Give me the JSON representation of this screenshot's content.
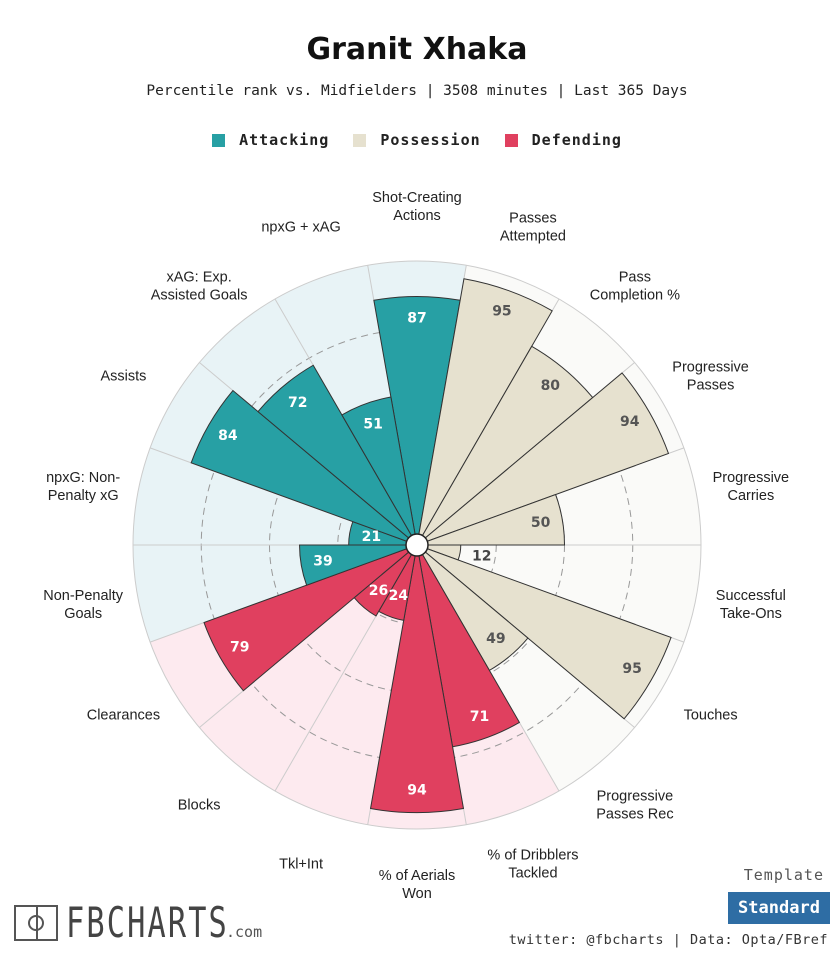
{
  "title": "Granit Xhaka",
  "subtitle": "Percentile rank vs. Midfielders | 3508 minutes | Last 365 Days",
  "legend": {
    "attacking": "Attacking",
    "possession": "Possession",
    "defending": "Defending"
  },
  "colors": {
    "attacking": "#27a0a4",
    "possession": "#e6e1cf",
    "defending": "#e0405f",
    "attacking_bg": "#e8f3f6",
    "possession_bg": "#fafaf8",
    "defending_bg": "#fdeaef"
  },
  "chart_data": {
    "type": "radar",
    "title": "Granit Xhaka",
    "scale": [
      0,
      100
    ],
    "metrics": [
      {
        "label": "Shot-Creating\nActions",
        "value": 87,
        "group": "attacking"
      },
      {
        "label": "Passes\nAttempted",
        "value": 95,
        "group": "possession"
      },
      {
        "label": "Pass\nCompletion %",
        "value": 80,
        "group": "possession"
      },
      {
        "label": "Progressive\nPasses",
        "value": 94,
        "group": "possession"
      },
      {
        "label": "Progressive\nCarries",
        "value": 50,
        "group": "possession"
      },
      {
        "label": "Successful\nTake-Ons",
        "value": 12,
        "group": "possession"
      },
      {
        "label": "Touches",
        "value": 95,
        "group": "possession"
      },
      {
        "label": "Progressive\nPasses Rec",
        "value": 49,
        "group": "possession"
      },
      {
        "label": "% of Dribblers\nTackled",
        "value": 71,
        "group": "defending"
      },
      {
        "label": "% of Aerials\nWon",
        "value": 94,
        "group": "defending"
      },
      {
        "label": "Tkl+Int",
        "value": 24,
        "group": "defending"
      },
      {
        "label": "Blocks",
        "value": 26,
        "group": "defending"
      },
      {
        "label": "Clearances",
        "value": 79,
        "group": "defending"
      },
      {
        "label": "Non-Penalty\nGoals",
        "value": 39,
        "group": "attacking"
      },
      {
        "label": "npxG: Non-\nPenalty xG",
        "value": 21,
        "group": "attacking"
      },
      {
        "label": "Assists",
        "value": 84,
        "group": "attacking"
      },
      {
        "label": "xAG: Exp.\nAssisted Goals",
        "value": 72,
        "group": "attacking"
      },
      {
        "label": "npxG + xAG",
        "value": 51,
        "group": "attacking"
      }
    ]
  },
  "footer": {
    "logo_text": "FBCHARTS",
    "logo_suffix": ".com",
    "template_label": "Template",
    "template_button": "Standard",
    "credit": "twitter: @fbcharts | Data: Opta/FBref"
  }
}
